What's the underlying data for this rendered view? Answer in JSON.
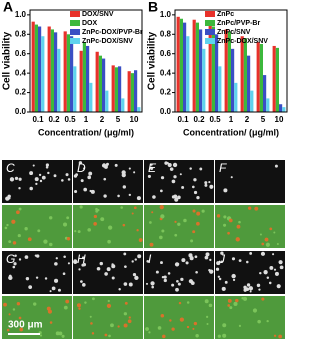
{
  "chart_data": [
    {
      "type": "bar",
      "panel": "A",
      "ylabel": "Cell viability",
      "xlabel": "Concentration/ (μg/ml)",
      "categories": [
        "0.1",
        "0.2",
        "0.5",
        "1",
        "2",
        "5",
        "10"
      ],
      "series": [
        {
          "name": "DOX/SNV",
          "color": "#e8312b",
          "values": [
            0.93,
            0.88,
            0.83,
            0.63,
            0.62,
            0.48,
            0.42
          ]
        },
        {
          "name": "DOX",
          "color": "#3cb83c",
          "values": [
            0.9,
            0.85,
            0.8,
            0.72,
            0.58,
            0.46,
            0.4
          ]
        },
        {
          "name": "ZnPc-DOX/PVP-Br",
          "color": "#3a4fc4",
          "values": [
            0.88,
            0.82,
            0.78,
            0.68,
            0.55,
            0.47,
            0.43
          ]
        },
        {
          "name": "ZnPc-DOX/SNV",
          "color": "#5fd3ee",
          "values": [
            0.78,
            0.65,
            0.47,
            0.3,
            0.22,
            0.14,
            0.05
          ]
        }
      ],
      "ylim": [
        0,
        1.05
      ],
      "yticks": [
        {
          "value": 0,
          "label": "0.0"
        },
        0.2,
        0.4,
        0.6,
        0.8,
        {
          "value": 1,
          "label": "1.0"
        }
      ],
      "legend": "upper right"
    },
    {
      "type": "bar",
      "panel": "B",
      "ylabel": "Cell viability",
      "xlabel": "Concentration/ (μg/ml)",
      "categories": [
        "0.1",
        "0.2",
        "0.5",
        "1",
        "2",
        "5",
        "10"
      ],
      "series": [
        {
          "name": "ZnPc",
          "color": "#e8312b",
          "values": [
            0.98,
            0.95,
            0.9,
            0.85,
            0.78,
            0.72,
            0.68
          ]
        },
        {
          "name": "ZnPc/PVP-Br",
          "color": "#3cb83c",
          "values": [
            0.96,
            0.92,
            0.88,
            0.83,
            0.76,
            0.7,
            0.66
          ]
        },
        {
          "name": "ZnPc/SNV",
          "color": "#3a4fc4",
          "values": [
            0.92,
            0.85,
            0.8,
            0.65,
            0.58,
            0.38,
            0.08
          ]
        },
        {
          "name": "ZnPc-DOX/SNV",
          "color": "#5fd3ee",
          "values": [
            0.78,
            0.65,
            0.47,
            0.3,
            0.22,
            0.14,
            0.05
          ]
        }
      ],
      "ylim": [
        0,
        1.05
      ],
      "yticks": [
        {
          "value": 0,
          "label": "0.0"
        },
        0.2,
        0.4,
        0.6,
        0.8,
        {
          "value": 1,
          "label": "1.0"
        }
      ],
      "legend": "upper right"
    }
  ],
  "images": {
    "labels": [
      "C",
      "D",
      "E",
      "F",
      "G",
      "H",
      "I",
      "J"
    ],
    "scale_bar": "300 μm"
  }
}
